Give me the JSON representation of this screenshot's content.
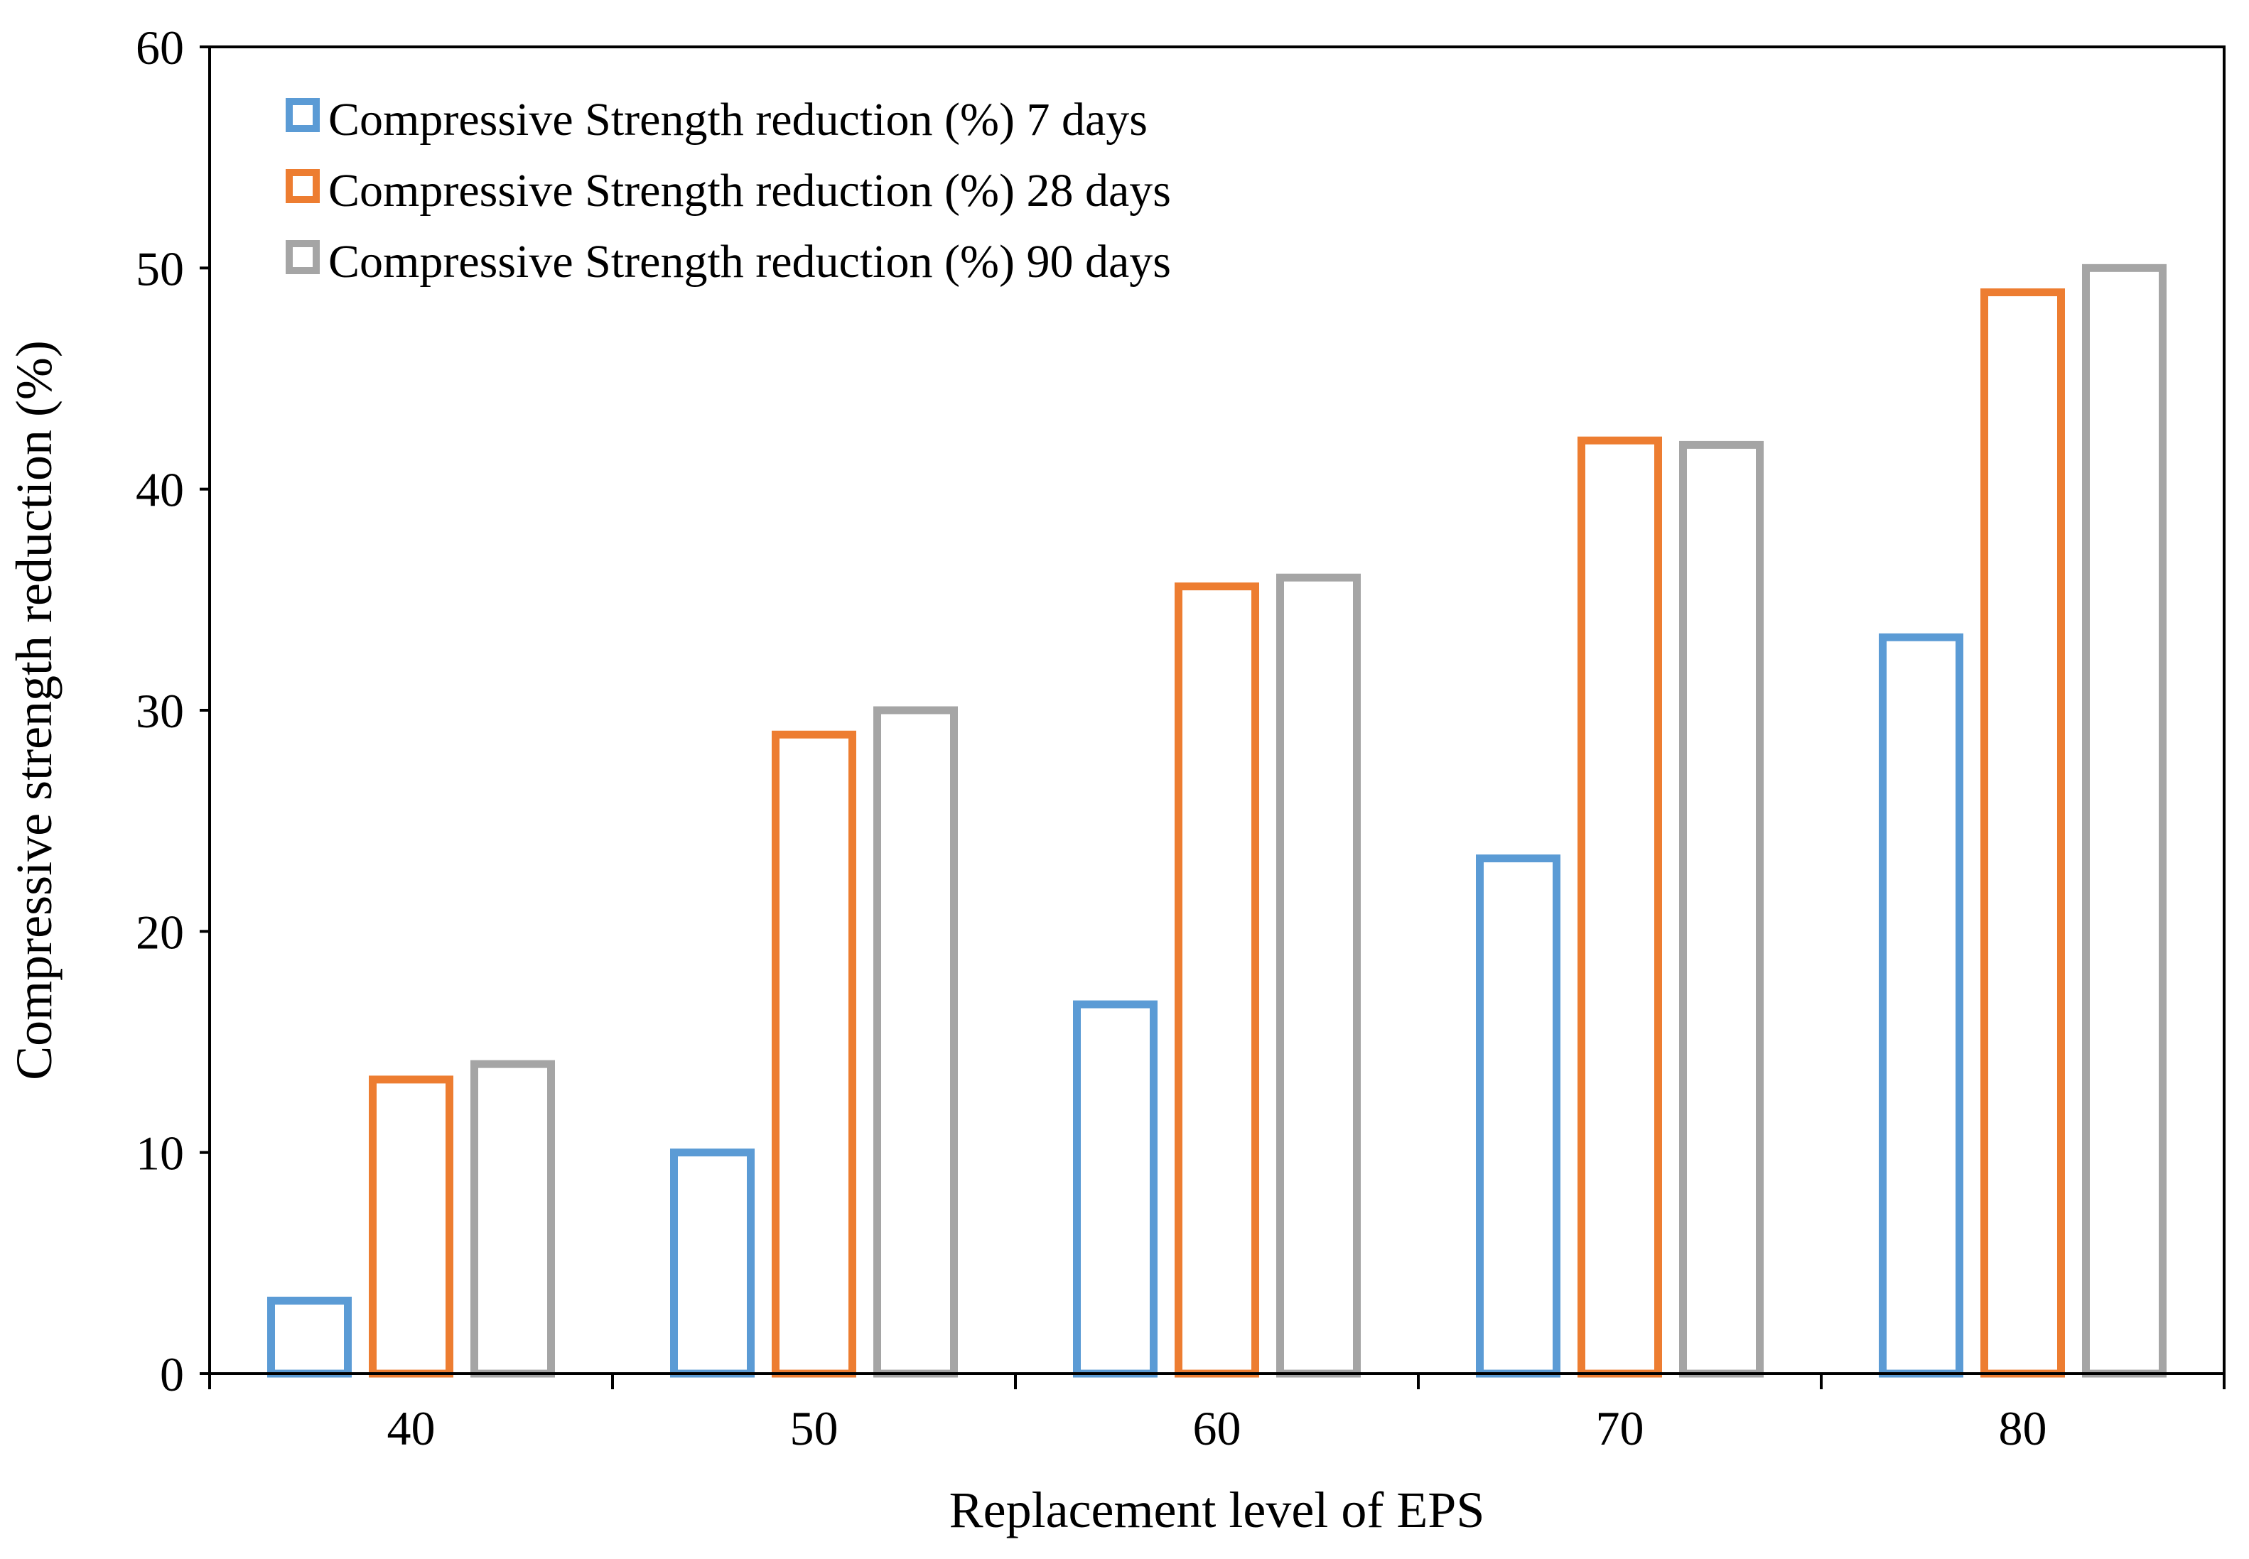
{
  "chart_data": {
    "type": "bar",
    "title": "",
    "xlabel": "Replacement level of EPS",
    "ylabel": "Compressive strength reduction (%)",
    "categories": [
      "40",
      "50",
      "60",
      "70",
      "80"
    ],
    "ylim": [
      0,
      60
    ],
    "yticks": [
      "0",
      "10",
      "20",
      "30",
      "40",
      "50",
      "60"
    ],
    "grid": false,
    "legend_position": "top-left",
    "bar_style": "outlined",
    "series": [
      {
        "name": "Compressive Strength reduction (%) 7 days",
        "color": "#5b9bd5",
        "values": [
          3.3,
          10,
          16.7,
          23.3,
          33.3
        ]
      },
      {
        "name": "Compressive Strength reduction (%) 28 days",
        "color": "#ed7d31",
        "values": [
          13.3,
          28.9,
          35.6,
          42.2,
          48.9
        ]
      },
      {
        "name": "Compressive Strength reduction (%) 90 days",
        "color": "#a5a5a5",
        "values": [
          14,
          30,
          36,
          42,
          50
        ]
      }
    ]
  }
}
